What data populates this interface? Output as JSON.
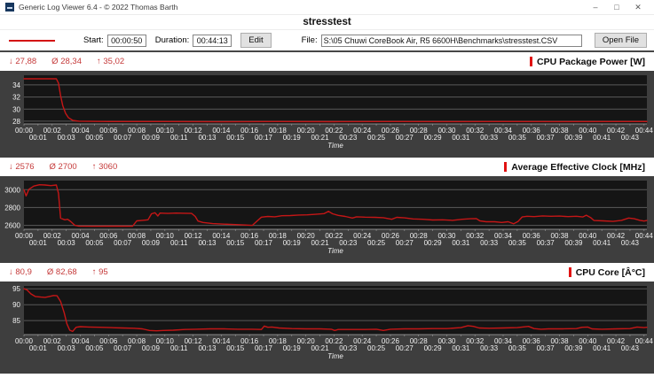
{
  "window": {
    "title": "Generic Log Viewer 6.4 - © 2022 Thomas Barth",
    "minimize_glyph": "–",
    "maximize_glyph": "□",
    "close_glyph": "✕"
  },
  "header": {
    "title": "stresstest"
  },
  "toolbar": {
    "start_label": "Start:",
    "start_value": "00:00:50",
    "duration_label": "Duration:",
    "duration_value": "00:44:13",
    "edit_button": "Edit",
    "file_label": "File:",
    "file_value": "S:\\05 Chuwi CoreBook Air, R5 6600H\\Benchmarks\\stresstest.CSV",
    "open_button": "Open File"
  },
  "colors": {
    "series_red": "#c41616",
    "accent_red": "#e01212",
    "stats_red": "#c53a3a",
    "panel_gray": "#3e3e3e",
    "plot_black": "#151515",
    "grid_gray": "#5a5a5a",
    "axis_text": "#f0f0f0"
  },
  "charts": [
    {
      "title": "CPU Package Power [W]",
      "stats": {
        "min": "↓ 27,88",
        "avg": "Ø 28,34",
        "max": "↑ 35,02"
      },
      "chart_data": {
        "type": "line",
        "xlabel": "Time",
        "x_max": 44.2,
        "x_tick_max": 44,
        "x_tick_format": "00:MM",
        "ylim": [
          27.55,
          35.6
        ],
        "yticks": [
          28,
          30,
          32,
          34
        ],
        "series_color": "#c41616",
        "grid": true,
        "points": [
          [
            0,
            35.02
          ],
          [
            2.3,
            35.02
          ],
          [
            2.45,
            34.3
          ],
          [
            2.6,
            32.2
          ],
          [
            2.75,
            30.6
          ],
          [
            2.95,
            29.3
          ],
          [
            3.15,
            28.6
          ],
          [
            3.45,
            28.15
          ],
          [
            3.9,
            28.0
          ],
          [
            6,
            27.95
          ],
          [
            10,
            27.95
          ],
          [
            14,
            27.9
          ],
          [
            18,
            27.95
          ],
          [
            22,
            27.92
          ],
          [
            26,
            27.95
          ],
          [
            30,
            27.93
          ],
          [
            34,
            27.95
          ],
          [
            38,
            27.93
          ],
          [
            42,
            27.95
          ],
          [
            44.2,
            27.95
          ]
        ]
      }
    },
    {
      "title": "Average Effective Clock [MHz]",
      "stats": {
        "min": "↓ 2576",
        "avg": "Ø 2700",
        "max": "↑ 3060"
      },
      "chart_data": {
        "type": "line",
        "xlabel": "Time",
        "x_max": 44.2,
        "x_tick_max": 44,
        "x_tick_format": "00:MM",
        "ylim": [
          2556,
          3102
        ],
        "yticks": [
          2600,
          2800,
          3000
        ],
        "series_color": "#c41616",
        "grid": true,
        "points": [
          [
            0,
            3000
          ],
          [
            0.15,
            2930
          ],
          [
            0.35,
            3005
          ],
          [
            0.7,
            3040
          ],
          [
            1.1,
            3055
          ],
          [
            1.5,
            3052
          ],
          [
            1.9,
            3045
          ],
          [
            2.3,
            3052
          ],
          [
            2.45,
            2960
          ],
          [
            2.6,
            2680
          ],
          [
            2.9,
            2662
          ],
          [
            3.1,
            2668
          ],
          [
            3.3,
            2645
          ],
          [
            3.6,
            2602
          ],
          [
            3.9,
            2592
          ],
          [
            5.0,
            2590
          ],
          [
            6.5,
            2591
          ],
          [
            7.7,
            2590
          ],
          [
            8.0,
            2650
          ],
          [
            8.4,
            2656
          ],
          [
            8.8,
            2662
          ],
          [
            9.05,
            2730
          ],
          [
            9.3,
            2742
          ],
          [
            9.5,
            2705
          ],
          [
            9.65,
            2738
          ],
          [
            10.2,
            2734
          ],
          [
            10.8,
            2738
          ],
          [
            11.4,
            2736
          ],
          [
            11.9,
            2734
          ],
          [
            12.15,
            2700
          ],
          [
            12.35,
            2648
          ],
          [
            12.7,
            2632
          ],
          [
            13.4,
            2620
          ],
          [
            14.2,
            2614
          ],
          [
            15.2,
            2608
          ],
          [
            16.2,
            2600
          ],
          [
            16.55,
            2650
          ],
          [
            16.85,
            2692
          ],
          [
            17.3,
            2700
          ],
          [
            17.8,
            2696
          ],
          [
            18.3,
            2708
          ],
          [
            18.9,
            2710
          ],
          [
            19.5,
            2716
          ],
          [
            20.1,
            2718
          ],
          [
            20.7,
            2724
          ],
          [
            21.3,
            2732
          ],
          [
            21.6,
            2758
          ],
          [
            21.9,
            2730
          ],
          [
            22.3,
            2712
          ],
          [
            22.8,
            2700
          ],
          [
            23.3,
            2682
          ],
          [
            23.6,
            2696
          ],
          [
            24.2,
            2692
          ],
          [
            24.9,
            2690
          ],
          [
            25.5,
            2686
          ],
          [
            26.1,
            2668
          ],
          [
            26.45,
            2690
          ],
          [
            27.0,
            2684
          ],
          [
            27.6,
            2672
          ],
          [
            28.3,
            2668
          ],
          [
            29.0,
            2660
          ],
          [
            29.7,
            2662
          ],
          [
            30.4,
            2656
          ],
          [
            31.1,
            2668
          ],
          [
            31.7,
            2674
          ],
          [
            32.1,
            2676
          ],
          [
            32.35,
            2650
          ],
          [
            32.8,
            2640
          ],
          [
            33.4,
            2640
          ],
          [
            33.9,
            2632
          ],
          [
            34.35,
            2640
          ],
          [
            34.75,
            2618
          ],
          [
            35.05,
            2642
          ],
          [
            35.35,
            2694
          ],
          [
            35.7,
            2702
          ],
          [
            36.2,
            2698
          ],
          [
            36.8,
            2706
          ],
          [
            37.4,
            2702
          ],
          [
            38.0,
            2704
          ],
          [
            38.6,
            2698
          ],
          [
            39.2,
            2702
          ],
          [
            39.65,
            2694
          ],
          [
            39.9,
            2714
          ],
          [
            40.2,
            2688
          ],
          [
            40.45,
            2654
          ],
          [
            41.1,
            2650
          ],
          [
            41.8,
            2644
          ],
          [
            42.4,
            2656
          ],
          [
            42.9,
            2682
          ],
          [
            43.3,
            2674
          ],
          [
            43.7,
            2656
          ],
          [
            44.0,
            2648
          ],
          [
            44.2,
            2654
          ]
        ]
      }
    },
    {
      "title": "CPU Core [Â°C]",
      "stats": {
        "min": "↓ 80,9",
        "avg": "Ø 82,68",
        "max": "↑ 95"
      },
      "chart_data": {
        "type": "line",
        "xlabel": "Time",
        "x_max": 44.2,
        "x_tick_max": 44,
        "x_tick_format": "00:MM",
        "ylim": [
          80.6,
          95.9
        ],
        "yticks": [
          85,
          90,
          95
        ],
        "series_color": "#c41616",
        "grid": true,
        "points": [
          [
            0,
            95
          ],
          [
            0.2,
            94.7
          ],
          [
            0.5,
            93.4
          ],
          [
            0.8,
            92.6
          ],
          [
            1.2,
            92.4
          ],
          [
            1.5,
            92.3
          ],
          [
            1.8,
            92.6
          ],
          [
            2.1,
            92.9
          ],
          [
            2.35,
            92.8
          ],
          [
            2.6,
            91.0
          ],
          [
            2.85,
            87.5
          ],
          [
            3.05,
            84.0
          ],
          [
            3.25,
            82.0
          ],
          [
            3.45,
            81.6
          ],
          [
            3.7,
            82.9
          ],
          [
            4.0,
            83.1
          ],
          [
            4.6,
            83.0
          ],
          [
            5.4,
            82.9
          ],
          [
            6.2,
            82.8
          ],
          [
            7.0,
            82.7
          ],
          [
            7.8,
            82.6
          ],
          [
            8.4,
            82.4
          ],
          [
            8.9,
            81.9
          ],
          [
            9.4,
            81.8
          ],
          [
            9.9,
            81.9
          ],
          [
            10.6,
            82.0
          ],
          [
            11.4,
            82.2
          ],
          [
            12.2,
            82.3
          ],
          [
            13.2,
            82.4
          ],
          [
            14.2,
            82.4
          ],
          [
            15.2,
            82.3
          ],
          [
            16.2,
            82.3
          ],
          [
            16.85,
            82.2
          ],
          [
            17.05,
            83.3
          ],
          [
            17.3,
            82.9
          ],
          [
            17.6,
            83.0
          ],
          [
            18.1,
            82.7
          ],
          [
            19.0,
            82.5
          ],
          [
            20.0,
            82.4
          ],
          [
            21.0,
            82.4
          ],
          [
            21.8,
            82.3
          ],
          [
            22.05,
            81.9
          ],
          [
            22.3,
            82.2
          ],
          [
            23.2,
            82.2
          ],
          [
            24.2,
            82.2
          ],
          [
            25.0,
            82.3
          ],
          [
            25.5,
            81.9
          ],
          [
            26.0,
            82.3
          ],
          [
            27.0,
            82.4
          ],
          [
            28.0,
            82.4
          ],
          [
            29.0,
            82.5
          ],
          [
            30.0,
            82.5
          ],
          [
            31.0,
            82.8
          ],
          [
            31.5,
            83.4
          ],
          [
            31.9,
            83.2
          ],
          [
            32.3,
            82.7
          ],
          [
            33.0,
            82.6
          ],
          [
            34.0,
            82.7
          ],
          [
            35.0,
            82.8
          ],
          [
            35.8,
            83.2
          ],
          [
            36.2,
            82.5
          ],
          [
            36.7,
            82.3
          ],
          [
            37.2,
            82.4
          ],
          [
            38.2,
            82.4
          ],
          [
            39.2,
            82.5
          ],
          [
            39.6,
            82.9
          ],
          [
            40.0,
            83.0
          ],
          [
            40.3,
            82.4
          ],
          [
            41.0,
            82.3
          ],
          [
            42.0,
            82.4
          ],
          [
            43.0,
            82.5
          ],
          [
            43.5,
            83.0
          ],
          [
            44.0,
            82.8
          ],
          [
            44.2,
            82.9
          ]
        ]
      }
    }
  ]
}
